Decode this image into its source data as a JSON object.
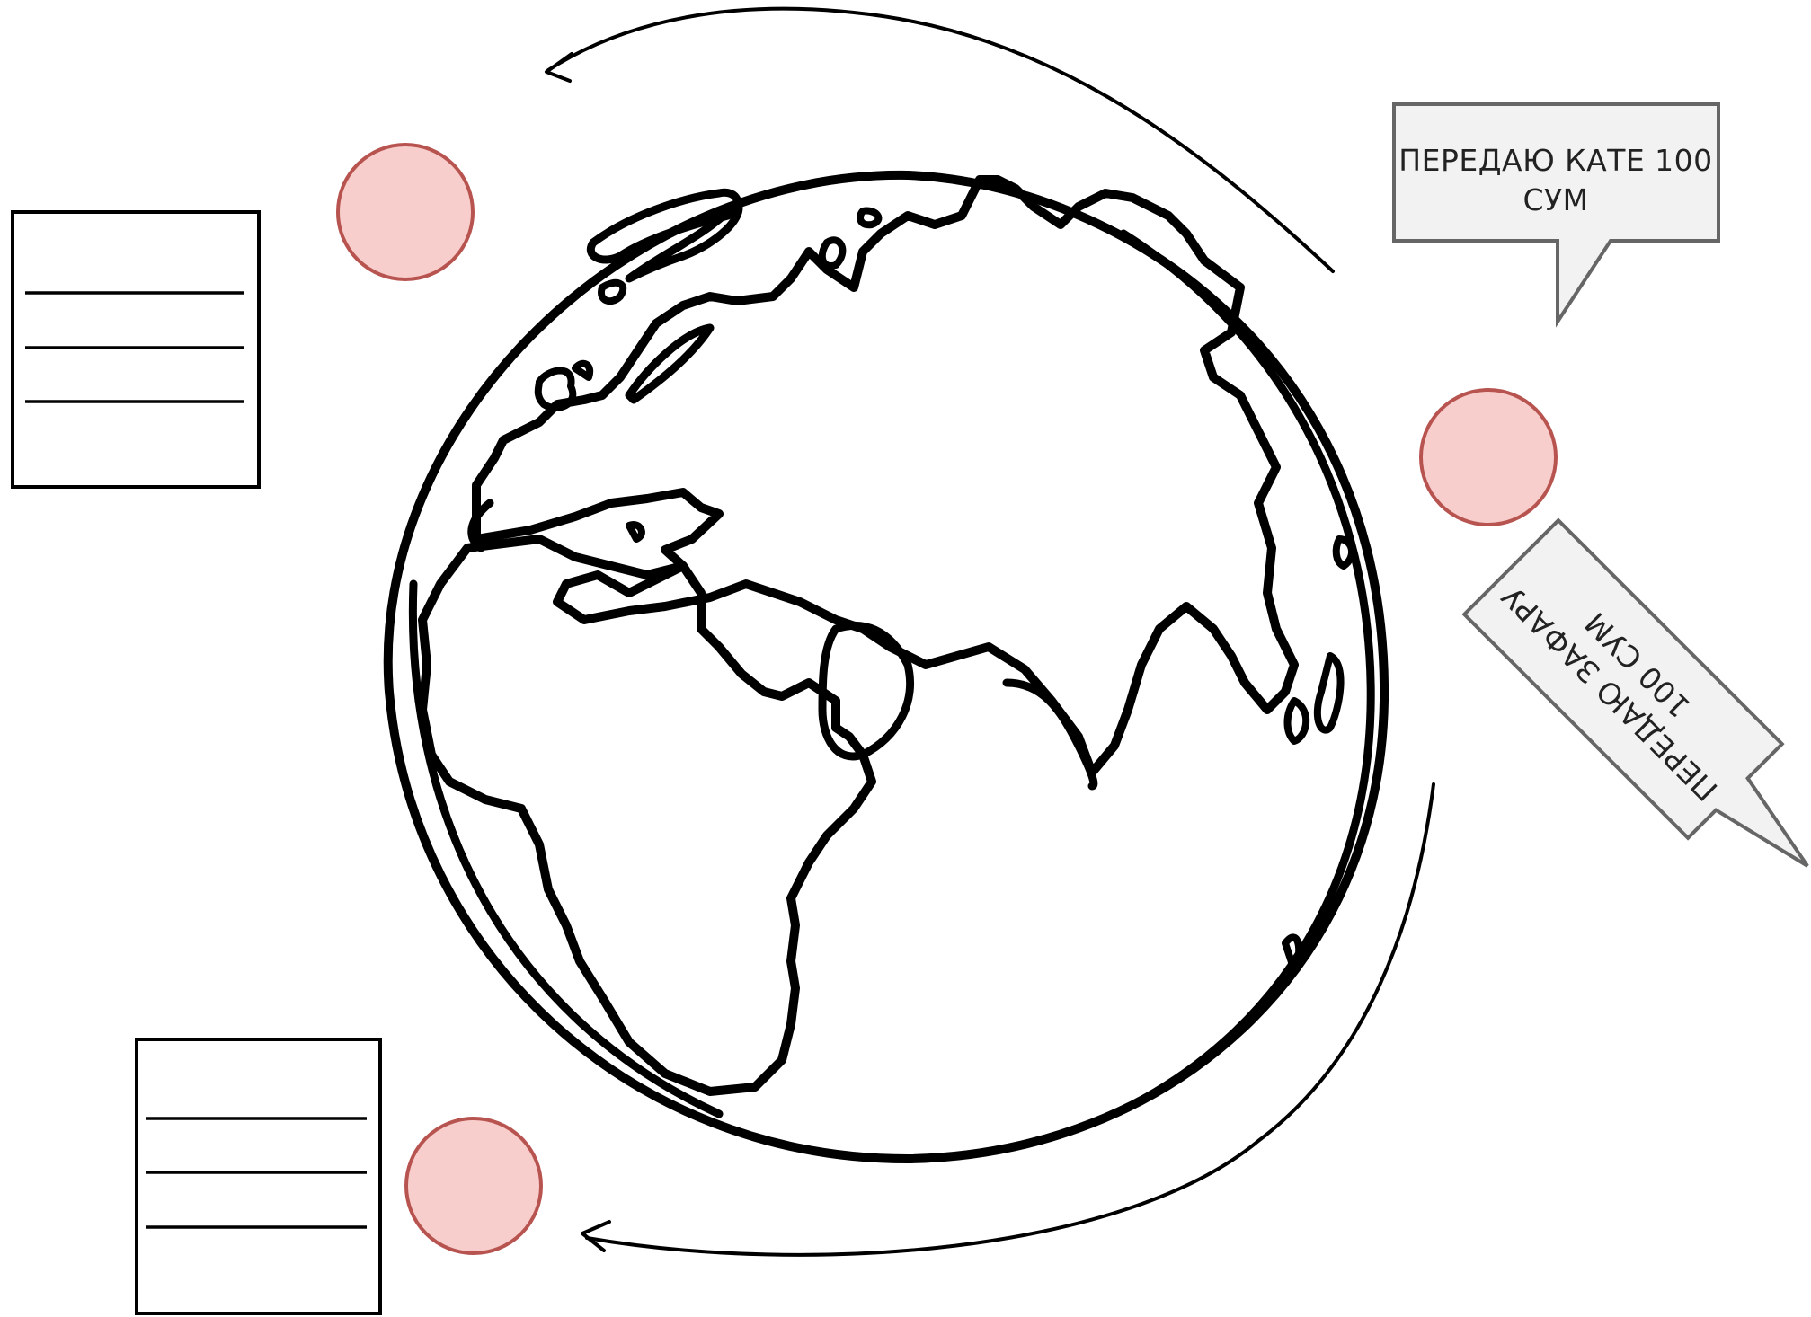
{
  "bubbles": {
    "top": {
      "line1": "ПЕРЕДАЮ КАТЕ 100",
      "line2": "СУМ"
    },
    "rotated": {
      "line1": "ПЕРЕДАЮ ЗАФАРУ",
      "line2": "100 СУМ"
    }
  },
  "colors": {
    "node_fill": "#f8cecc",
    "node_stroke": "#b85450",
    "bubble_fill": "#f2f2f2",
    "bubble_stroke": "#666666",
    "line": "#000000"
  }
}
